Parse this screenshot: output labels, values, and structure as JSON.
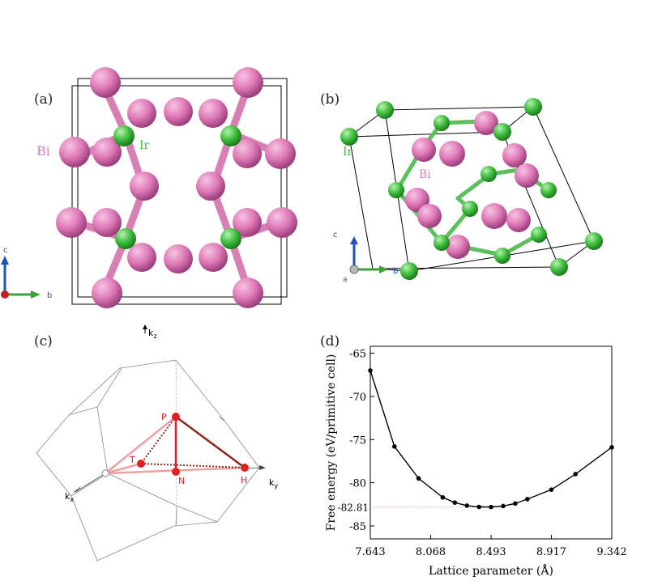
{
  "panels": {
    "a": {
      "label": "(a)",
      "atom_bi": "Bi",
      "atom_ir": "Ir",
      "axis_c": "c",
      "axis_b": "b"
    },
    "b": {
      "label": "(b)",
      "atom_bi": "Bi",
      "atom_ir": "Ir",
      "axis_c": "c",
      "axis_b": "b",
      "axis_a": "a"
    },
    "c": {
      "label": "(c)",
      "kz": "k",
      "kz_sub": "z",
      "kx": "k",
      "kx_sub": "x",
      "ky": "k",
      "ky_sub": "y",
      "points": {
        "P": "P",
        "T": "T",
        "N": "N",
        "H": "H"
      }
    },
    "d": {
      "label": "(d)"
    }
  },
  "colors": {
    "bi": "#e07ab8",
    "ir": "#3fbf3f",
    "kpath": "#e02020",
    "axis_c": "#1f4fc0",
    "axis_b": "#3fa03f",
    "axis_a": "#c02020"
  },
  "chart_data": {
    "type": "line",
    "xlabel": "Lattice parameter (Å)",
    "ylabel": "Free energy (eV/primitive cell)",
    "xticks": [
      "7.643",
      "8.068",
      "8.493",
      "8.917",
      "9.342"
    ],
    "yticks": [
      "-65",
      "-70",
      "-75",
      "-80",
      "-85"
    ],
    "xlim": [
      7.643,
      9.342
    ],
    "ylim": [
      -86.5,
      -64.2
    ],
    "min_marker": {
      "value": -82.81,
      "label": "-82.81"
    },
    "series": [
      {
        "x": [
          7.643,
          7.813,
          7.983,
          8.153,
          8.238,
          8.323,
          8.408,
          8.493,
          8.578,
          8.663,
          8.748,
          8.917,
          9.087,
          9.342
        ],
        "y": [
          -67.0,
          -75.8,
          -79.5,
          -81.7,
          -82.3,
          -82.65,
          -82.8,
          -82.81,
          -82.7,
          -82.4,
          -81.9,
          -80.8,
          -79.0,
          -75.9
        ]
      }
    ]
  }
}
